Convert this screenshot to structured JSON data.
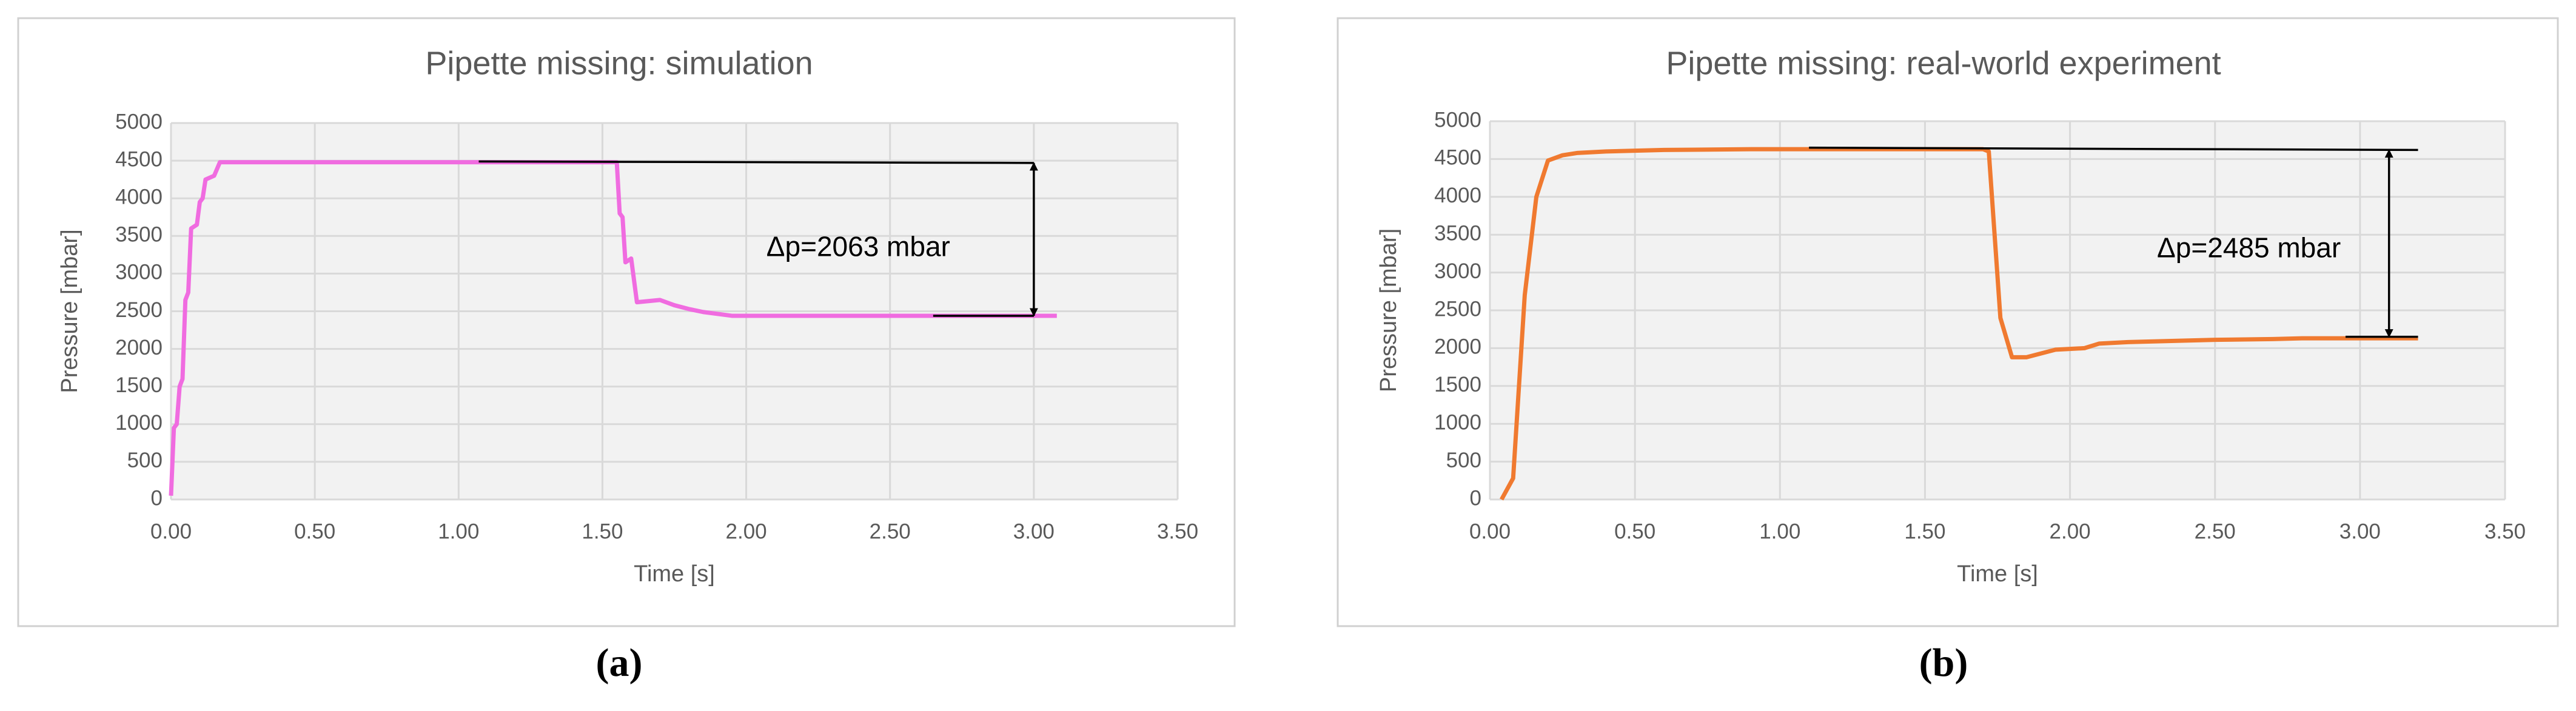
{
  "chart_data": [
    {
      "type": "line",
      "title": "Pipette missing: simulation",
      "xlabel": "Time [s]",
      "ylabel": "Pressure [mbar]",
      "caption": "(a)",
      "xlim": [
        0,
        3.5
      ],
      "xticks": [
        {
          "value": 0,
          "label": "0.00"
        },
        {
          "value": 0.5,
          "label": "0.50"
        },
        {
          "value": 1,
          "label": "1.00"
        },
        {
          "value": 1.5,
          "label": "1.50"
        },
        {
          "value": 2,
          "label": "2.00"
        },
        {
          "value": 2.5,
          "label": "2.50"
        },
        {
          "value": 3,
          "label": "3.00"
        },
        {
          "value": 3.5,
          "label": "3.50"
        }
      ],
      "ylim": [
        0,
        5000
      ],
      "yticks": [
        0,
        500,
        1000,
        1500,
        2000,
        2500,
        3000,
        3500,
        4000,
        4500,
        5000
      ],
      "grid": true,
      "series": [
        {
          "color": "#f06ce0",
          "x": [
            0,
            0.01,
            0.02,
            0.03,
            0.04,
            0.05,
            0.06,
            0.07,
            0.09,
            0.1,
            0.11,
            0.12,
            0.15,
            0.17,
            1.55,
            1.56,
            1.57,
            1.58,
            1.6,
            1.62,
            1.7,
            1.75,
            1.8,
            1.85,
            1.95,
            3.08
          ],
          "values": [
            50,
            950,
            1000,
            1500,
            1600,
            2650,
            2750,
            3600,
            3650,
            3950,
            4000,
            4250,
            4300,
            4480,
            4480,
            3800,
            3750,
            3150,
            3200,
            2620,
            2650,
            2580,
            2530,
            2490,
            2440,
            2440
          ]
        }
      ],
      "reference_lines": [
        {
          "color": "#000000",
          "x": [
            1.07,
            3.0
          ],
          "values": [
            4490,
            4470
          ]
        },
        {
          "color": "#000000",
          "x": [
            2.65,
            3.0
          ],
          "values": [
            2440,
            2440
          ]
        }
      ],
      "arrow": {
        "x": 3.0,
        "values": [
          4470,
          2440
        ]
      },
      "annotation": {
        "text": "Δp=2063 mbar",
        "x": 2.07,
        "y": 3330
      }
    },
    {
      "type": "line",
      "title": "Pipette missing: real-world experiment",
      "xlabel": "Time [s]",
      "ylabel": "Pressure [mbar]",
      "caption": "(b)",
      "xlim": [
        0,
        3.5
      ],
      "xticks": [
        {
          "value": 0,
          "label": "0.00"
        },
        {
          "value": 0.5,
          "label": "0.50"
        },
        {
          "value": 1,
          "label": "1.00"
        },
        {
          "value": 1.5,
          "label": "1.50"
        },
        {
          "value": 2,
          "label": "2.00"
        },
        {
          "value": 2.5,
          "label": "2.50"
        },
        {
          "value": 3,
          "label": "3.00"
        },
        {
          "value": 3.5,
          "label": "3.50"
        }
      ],
      "ylim": [
        0,
        5000
      ],
      "yticks": [
        0,
        500,
        1000,
        1500,
        2000,
        2500,
        3000,
        3500,
        4000,
        4500,
        5000
      ],
      "grid": true,
      "series": [
        {
          "color": "#f07a30",
          "x": [
            0.04,
            0.08,
            0.12,
            0.16,
            0.2,
            0.25,
            0.3,
            0.4,
            0.5,
            0.6,
            0.9,
            1.7,
            1.72,
            1.76,
            1.8,
            1.85,
            1.9,
            1.95,
            2.0,
            2.05,
            2.1,
            2.2,
            2.3,
            2.4,
            2.5,
            2.7,
            2.8,
            3.2
          ],
          "values": [
            0,
            280,
            2700,
            4000,
            4480,
            4550,
            4580,
            4600,
            4610,
            4620,
            4630,
            4630,
            4600,
            2400,
            1880,
            1880,
            1930,
            1980,
            1990,
            2000,
            2060,
            2080,
            2090,
            2100,
            2110,
            2120,
            2130,
            2130
          ]
        }
      ],
      "reference_lines": [
        {
          "color": "#000000",
          "x": [
            1.1,
            3.2
          ],
          "values": [
            4650,
            4620
          ]
        },
        {
          "color": "#000000",
          "x": [
            2.95,
            3.2
          ],
          "values": [
            2150,
            2150
          ]
        }
      ],
      "arrow": {
        "x": 3.1,
        "values": [
          4620,
          2150
        ]
      },
      "annotation": {
        "text": "Δp=2485 mbar",
        "x": 2.3,
        "y": 3300
      }
    }
  ]
}
